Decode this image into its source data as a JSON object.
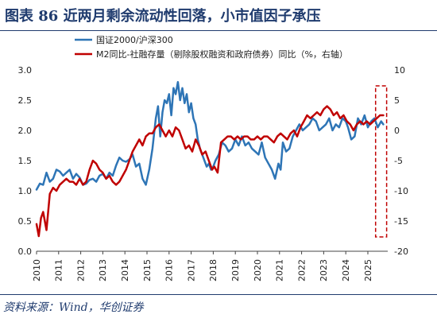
{
  "header": {
    "title": "图表 86   近两月剩余流动性回落，小市值因子承压"
  },
  "footer": {
    "source": "资料来源：Wind，华创证券"
  },
  "chart_data": {
    "type": "line",
    "x_ticks": [
      "2010",
      "2011",
      "2012",
      "2013",
      "2014",
      "2015",
      "2016",
      "2017",
      "2018",
      "2019",
      "2020",
      "2021",
      "2022",
      "2023",
      "2024",
      "2025"
    ],
    "y_left": {
      "ylim": [
        0,
        3.0
      ],
      "ticks": [
        "0.0",
        "0.5",
        "1.0",
        "1.5",
        "2.0",
        "2.5",
        "3.0"
      ]
    },
    "y_right": {
      "ylim": [
        -20,
        10
      ],
      "ticks": [
        "-20",
        "-15",
        "-10",
        "-5",
        "0",
        "5",
        "10"
      ]
    },
    "highlight": {
      "x_range": [
        2025.35,
        2025.85
      ],
      "color": "#c00000",
      "style": "dashed"
    },
    "series": [
      {
        "name": "国证2000/沪深300",
        "axis": "left",
        "color": "#2e75b6",
        "x": [
          2010.0,
          2010.15,
          2010.3,
          2010.45,
          2010.6,
          2010.75,
          2010.9,
          2011.05,
          2011.2,
          2011.35,
          2011.5,
          2011.65,
          2011.8,
          2011.95,
          2012.1,
          2012.25,
          2012.4,
          2012.55,
          2012.7,
          2012.85,
          2013.0,
          2013.15,
          2013.3,
          2013.45,
          2013.6,
          2013.75,
          2013.9,
          2014.05,
          2014.2,
          2014.35,
          2014.5,
          2014.65,
          2014.8,
          2014.95,
          2015.1,
          2015.25,
          2015.4,
          2015.5,
          2015.6,
          2015.7,
          2015.8,
          2015.9,
          2016.0,
          2016.1,
          2016.2,
          2016.3,
          2016.4,
          2016.5,
          2016.6,
          2016.7,
          2016.8,
          2016.9,
          2017.0,
          2017.1,
          2017.2,
          2017.3,
          2017.4,
          2017.5,
          2017.6,
          2017.7,
          2017.8,
          2017.9,
          2018.0,
          2018.1,
          2018.25,
          2018.4,
          2018.55,
          2018.7,
          2018.85,
          2019.0,
          2019.15,
          2019.3,
          2019.45,
          2019.6,
          2019.75,
          2019.9,
          2020.05,
          2020.2,
          2020.35,
          2020.5,
          2020.65,
          2020.8,
          2020.95,
          2021.05,
          2021.15,
          2021.3,
          2021.45,
          2021.6,
          2021.75,
          2021.9,
          2022.05,
          2022.2,
          2022.35,
          2022.5,
          2022.65,
          2022.8,
          2022.95,
          2023.1,
          2023.25,
          2023.4,
          2023.55,
          2023.7,
          2023.85,
          2024.0,
          2024.1,
          2024.25,
          2024.4,
          2024.55,
          2024.7,
          2024.85,
          2025.0,
          2025.15,
          2025.3,
          2025.45,
          2025.6,
          2025.7
        ],
        "values": [
          1.02,
          1.12,
          1.1,
          1.3,
          1.15,
          1.2,
          1.35,
          1.32,
          1.25,
          1.3,
          1.35,
          1.2,
          1.28,
          1.22,
          1.1,
          1.12,
          1.18,
          1.2,
          1.15,
          1.25,
          1.28,
          1.2,
          1.3,
          1.25,
          1.42,
          1.55,
          1.5,
          1.48,
          1.52,
          1.6,
          1.4,
          1.45,
          1.2,
          1.1,
          1.35,
          1.7,
          2.2,
          2.4,
          1.9,
          2.3,
          2.5,
          2.45,
          2.6,
          2.25,
          2.7,
          2.6,
          2.8,
          2.5,
          2.7,
          2.45,
          2.6,
          2.3,
          2.45,
          2.2,
          2.1,
          1.85,
          1.7,
          1.6,
          1.5,
          1.4,
          1.45,
          1.35,
          1.4,
          1.5,
          1.6,
          1.8,
          1.75,
          1.65,
          1.7,
          1.85,
          1.75,
          1.9,
          1.75,
          1.8,
          1.7,
          1.65,
          1.6,
          1.8,
          1.55,
          1.45,
          1.35,
          1.2,
          1.45,
          1.35,
          1.8,
          1.65,
          1.7,
          1.9,
          2.0,
          2.1,
          2.0,
          2.05,
          2.1,
          2.2,
          2.15,
          2.0,
          2.05,
          2.1,
          2.2,
          2.0,
          2.1,
          2.05,
          2.2,
          2.15,
          2.05,
          1.85,
          1.9,
          2.2,
          2.1,
          2.25,
          2.05,
          2.15,
          2.2,
          2.05,
          2.15,
          2.1
        ]
      },
      {
        "name": "M2同比-社融存量（剔除股权融资和政府债券）同比（%，右轴）",
        "axis": "right",
        "color": "#c00000",
        "x": [
          2010.0,
          2010.1,
          2010.2,
          2010.3,
          2010.45,
          2010.6,
          2010.75,
          2010.9,
          2011.05,
          2011.2,
          2011.35,
          2011.5,
          2011.65,
          2011.8,
          2011.95,
          2012.1,
          2012.25,
          2012.4,
          2012.55,
          2012.7,
          2012.85,
          2013.0,
          2013.15,
          2013.3,
          2013.45,
          2013.6,
          2013.75,
          2013.9,
          2014.05,
          2014.2,
          2014.35,
          2014.5,
          2014.65,
          2014.8,
          2014.95,
          2015.1,
          2015.25,
          2015.4,
          2015.55,
          2015.7,
          2015.85,
          2016.0,
          2016.15,
          2016.3,
          2016.45,
          2016.6,
          2016.75,
          2016.9,
          2017.05,
          2017.2,
          2017.35,
          2017.5,
          2017.65,
          2017.8,
          2017.95,
          2018.05,
          2018.2,
          2018.35,
          2018.5,
          2018.65,
          2018.8,
          2018.95,
          2019.1,
          2019.25,
          2019.4,
          2019.55,
          2019.7,
          2019.85,
          2020.0,
          2020.15,
          2020.3,
          2020.45,
          2020.6,
          2020.75,
          2020.9,
          2021.05,
          2021.2,
          2021.35,
          2021.5,
          2021.65,
          2021.8,
          2021.95,
          2022.1,
          2022.25,
          2022.4,
          2022.55,
          2022.7,
          2022.85,
          2023.0,
          2023.15,
          2023.3,
          2023.45,
          2023.6,
          2023.75,
          2023.9,
          2024.05,
          2024.2,
          2024.35,
          2024.5,
          2024.65,
          2024.8,
          2024.95,
          2025.1,
          2025.25,
          2025.4,
          2025.55,
          2025.7
        ],
        "values": [
          -15.5,
          -17.5,
          -14.5,
          -13.5,
          -16.5,
          -10.5,
          -9.5,
          -10.0,
          -9.0,
          -8.5,
          -8.0,
          -8.5,
          -8.5,
          -9.0,
          -8.0,
          -9.0,
          -8.5,
          -6.5,
          -5.0,
          -5.5,
          -6.5,
          -7.0,
          -8.0,
          -7.5,
          -8.5,
          -9.0,
          -8.5,
          -7.5,
          -6.5,
          -5.0,
          -3.5,
          -2.5,
          -1.5,
          -2.5,
          -1.0,
          -0.5,
          -0.5,
          0.5,
          1.0,
          0.0,
          -1.0,
          0.0,
          -1.0,
          0.5,
          0.0,
          -1.5,
          -3.0,
          -2.5,
          -3.5,
          -1.5,
          -2.5,
          -4.0,
          -3.5,
          -5.0,
          -6.5,
          -6.0,
          -7.0,
          -2.0,
          -1.5,
          -1.0,
          -1.0,
          -1.5,
          -1.0,
          -1.5,
          -1.0,
          -1.0,
          -1.5,
          -1.5,
          -1.0,
          -1.5,
          -1.0,
          -1.0,
          -1.5,
          -2.0,
          -1.0,
          -0.5,
          -1.0,
          -1.5,
          -0.5,
          0.0,
          -1.0,
          0.5,
          1.5,
          2.5,
          2.0,
          2.5,
          3.0,
          2.5,
          3.5,
          4.0,
          3.5,
          2.5,
          3.0,
          2.0,
          2.5,
          1.5,
          1.0,
          0.0,
          1.0,
          1.5,
          1.0,
          1.5,
          1.0,
          1.5,
          2.0,
          2.5,
          2.5
        ]
      }
    ]
  }
}
